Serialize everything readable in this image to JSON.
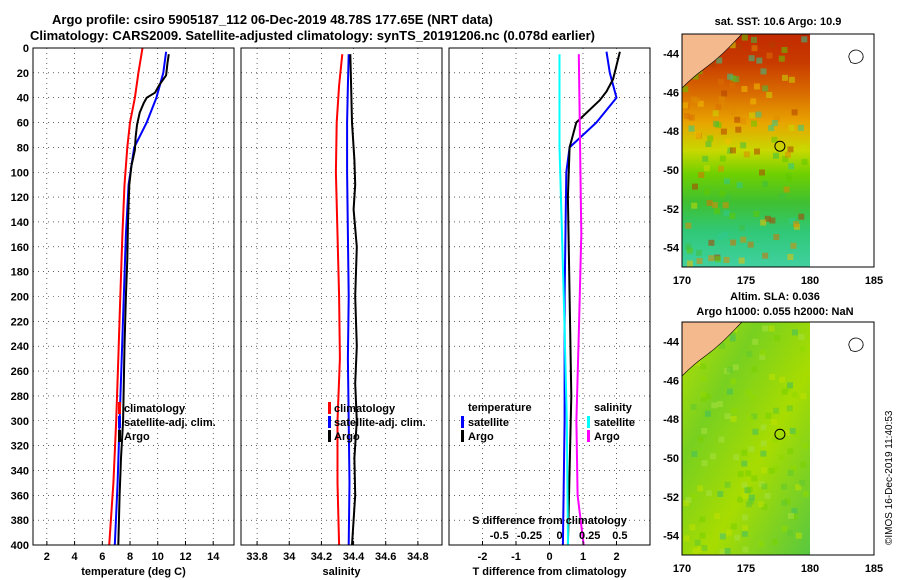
{
  "header": {
    "line1": "Argo profile: csiro 5905187_112 06-Dec-2019 48.78S 177.65E (NRT data)",
    "line2": "Climatology: CARS2009. Satellite-adjusted climatology: synTS_20191206.nc (0.078d earlier)"
  },
  "colors": {
    "climatology": "#ff0000",
    "satellite": "#0000ff",
    "argo": "#000000",
    "sat_salinity": "#00ffff",
    "argo_salinity": "#ff00ff",
    "land": "#f4b98c"
  },
  "depth_axis": {
    "ticks": [
      0,
      20,
      40,
      60,
      80,
      100,
      120,
      140,
      160,
      180,
      200,
      220,
      240,
      260,
      280,
      300,
      320,
      340,
      360,
      380,
      400
    ]
  },
  "chart_data": [
    {
      "type": "line",
      "id": "temperature",
      "xlabel": "temperature (deg C)",
      "ylabel": "depth",
      "xlim": [
        1,
        15.5
      ],
      "ylim": [
        400,
        0
      ],
      "xticks": [
        2,
        4,
        6,
        8,
        10,
        12,
        14
      ],
      "legend": [
        "climatology",
        "satellite-adj. clim.",
        "Argo"
      ],
      "series": [
        {
          "name": "climatology",
          "color": "#ff0000",
          "points": [
            [
              8.9,
              0
            ],
            [
              8.6,
              20
            ],
            [
              8.35,
              40
            ],
            [
              8.0,
              60
            ],
            [
              7.8,
              80
            ],
            [
              7.6,
              110
            ],
            [
              7.45,
              150
            ],
            [
              7.3,
              200
            ],
            [
              7.15,
              250
            ],
            [
              7.0,
              300
            ],
            [
              6.8,
              350
            ],
            [
              6.5,
              400
            ]
          ]
        },
        {
          "name": "satellite-adj. clim.",
          "color": "#0000ff",
          "points": [
            [
              10.6,
              3
            ],
            [
              10.4,
              20
            ],
            [
              9.9,
              40
            ],
            [
              9.2,
              60
            ],
            [
              8.3,
              80
            ],
            [
              7.9,
              110
            ],
            [
              7.7,
              150
            ],
            [
              7.55,
              200
            ],
            [
              7.4,
              250
            ],
            [
              7.25,
              300
            ],
            [
              7.1,
              350
            ],
            [
              6.9,
              400
            ]
          ]
        },
        {
          "name": "Argo",
          "color": "#000000",
          "points": [
            [
              10.8,
              5
            ],
            [
              10.7,
              12
            ],
            [
              10.6,
              22
            ],
            [
              10.1,
              30
            ],
            [
              9.8,
              36
            ],
            [
              9.2,
              40
            ],
            [
              9.0,
              44
            ],
            [
              8.7,
              52
            ],
            [
              8.5,
              62
            ],
            [
              8.4,
              72
            ],
            [
              8.35,
              82
            ],
            [
              8.1,
              95
            ],
            [
              7.95,
              110
            ],
            [
              7.85,
              140
            ],
            [
              7.8,
              170
            ],
            [
              7.7,
              200
            ],
            [
              7.6,
              240
            ],
            [
              7.55,
              270
            ],
            [
              7.5,
              300
            ],
            [
              7.35,
              330
            ],
            [
              7.25,
              360
            ],
            [
              7.15,
              400
            ]
          ]
        }
      ]
    },
    {
      "type": "line",
      "id": "salinity",
      "xlabel": "salinity",
      "ylabel": "",
      "xlim": [
        33.7,
        34.95
      ],
      "ylim": [
        400,
        0
      ],
      "xticks": [
        33.8,
        34,
        34.2,
        34.4,
        34.6,
        34.8
      ],
      "legend": [
        "climatology",
        "satellite-adj. clim.",
        "Argo"
      ],
      "series": [
        {
          "name": "climatology",
          "color": "#ff0000",
          "points": [
            [
              34.33,
              5
            ],
            [
              34.31,
              30
            ],
            [
              34.295,
              60
            ],
            [
              34.29,
              100
            ],
            [
              34.3,
              150
            ],
            [
              34.31,
              200
            ],
            [
              34.315,
              250
            ],
            [
              34.3,
              300
            ],
            [
              34.3,
              350
            ],
            [
              34.31,
              400
            ]
          ]
        },
        {
          "name": "satellite-adj. clim.",
          "color": "#0000ff",
          "points": [
            [
              34.37,
              5
            ],
            [
              34.365,
              30
            ],
            [
              34.36,
              60
            ],
            [
              34.36,
              100
            ],
            [
              34.365,
              150
            ],
            [
              34.37,
              200
            ],
            [
              34.365,
              250
            ],
            [
              34.37,
              300
            ],
            [
              34.375,
              350
            ],
            [
              34.37,
              400
            ]
          ]
        },
        {
          "name": "Argo",
          "color": "#000000",
          "points": [
            [
              34.38,
              5
            ],
            [
              34.385,
              30
            ],
            [
              34.39,
              60
            ],
            [
              34.405,
              90
            ],
            [
              34.41,
              110
            ],
            [
              34.4,
              130
            ],
            [
              34.42,
              160
            ],
            [
              34.41,
              200
            ],
            [
              34.42,
              240
            ],
            [
              34.41,
              270
            ],
            [
              34.42,
              300
            ],
            [
              34.405,
              330
            ],
            [
              34.41,
              360
            ],
            [
              34.39,
              400
            ]
          ]
        }
      ]
    },
    {
      "type": "line",
      "id": "difference",
      "xlabel": "T difference from climatology",
      "xlabel2": "S difference from climatology",
      "xlim": [
        -3.0,
        3.0
      ],
      "ylim": [
        400,
        0
      ],
      "xticks": [
        -2,
        -1,
        0,
        1,
        2
      ],
      "xticks_s": [
        "-0.5",
        "-0.25",
        "0",
        "0.25",
        "0.5"
      ],
      "xticks_s_values": [
        -0.5,
        -0.25,
        0,
        0.25,
        0.5
      ],
      "legend_temperature_title": "temperature",
      "legend_salinity_title": "salinity",
      "legend": [
        "satellite",
        "Argo",
        "satellite",
        "Argo"
      ],
      "series": [
        {
          "name": "T satellite",
          "color": "#0000ff",
          "points": [
            [
              1.7,
              3
            ],
            [
              1.8,
              20
            ],
            [
              2.0,
              40
            ],
            [
              1.4,
              60
            ],
            [
              0.6,
              80
            ],
            [
              0.5,
              100
            ],
            [
              0.45,
              200
            ],
            [
              0.45,
              300
            ],
            [
              0.4,
              400
            ]
          ]
        },
        {
          "name": "T Argo",
          "color": "#000000",
          "points": [
            [
              2.1,
              3
            ],
            [
              1.9,
              25
            ],
            [
              1.7,
              35
            ],
            [
              1.5,
              42
            ],
            [
              0.8,
              60
            ],
            [
              0.6,
              80
            ],
            [
              0.55,
              120
            ],
            [
              0.6,
              200
            ],
            [
              0.65,
              280
            ],
            [
              0.6,
              340
            ],
            [
              0.55,
              400
            ]
          ]
        },
        {
          "name": "S satellite",
          "color": "#00ffff",
          "points": [
            [
              0.0,
              5
            ],
            [
              0.0,
              80
            ],
            [
              0.02,
              150
            ],
            [
              0.04,
              220
            ],
            [
              0.06,
              300
            ],
            [
              0.07,
              400
            ]
          ]
        },
        {
          "name": "S Argo",
          "color": "#ff00ff",
          "points": [
            [
              0.16,
              5
            ],
            [
              0.17,
              80
            ],
            [
              0.18,
              150
            ],
            [
              0.16,
              230
            ],
            [
              0.14,
              300
            ],
            [
              0.15,
              360
            ],
            [
              0.2,
              400
            ]
          ]
        }
      ]
    },
    {
      "type": "heatmap",
      "id": "sst-map",
      "title": "sat. SST: 10.6 Argo: 10.9",
      "xlim": [
        170,
        185
      ],
      "ylim": [
        -55,
        -43
      ],
      "xticks": [
        170,
        175,
        180,
        185
      ],
      "yticks": [
        -44,
        -46,
        -48,
        -50,
        -52,
        -54
      ],
      "argo_position": [
        177.65,
        -48.78
      ]
    },
    {
      "type": "heatmap",
      "id": "sla-map",
      "title": "Altim. SLA: 0.036",
      "subtitle": "Argo h1000: 0.055 h2000: NaN",
      "xlim": [
        170,
        185
      ],
      "ylim": [
        -55,
        -43
      ],
      "xticks": [
        170,
        175,
        180,
        185
      ],
      "yticks": [
        -44,
        -46,
        -48,
        -50,
        -52,
        -54
      ],
      "argo_position": [
        177.65,
        -48.78
      ]
    }
  ],
  "watermark": "©IMOS 16-Dec-2019 11:40:53"
}
